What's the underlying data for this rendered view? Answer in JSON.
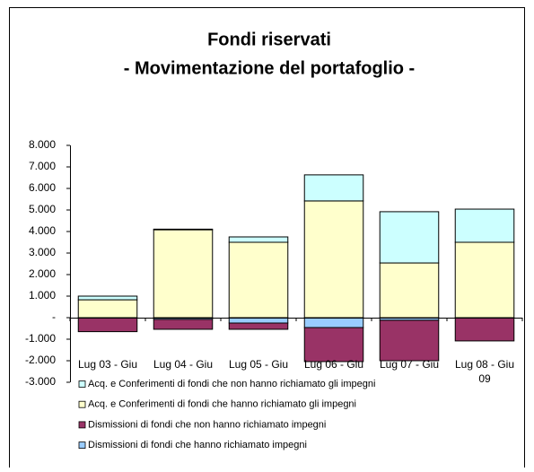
{
  "chart_data": {
    "type": "stacked_bar",
    "title": "Fondi riservati",
    "subtitle": "- Movimentazione del portafoglio -",
    "categories": [
      "Lug 03 - Giu",
      "Lug 04 - Giu",
      "Lug 05 - Giu",
      "Lug 06 - Giu",
      "Lug 07 - Giu",
      "Lug 08 - Giu 09"
    ],
    "series": [
      {
        "name": "Acq. e Conferimenti di fondi che non hanno richiamato gli impegni",
        "color": "#ccffff",
        "values": [
          170,
          30,
          250,
          1210,
          2380,
          1540
        ]
      },
      {
        "name": "Acq. e Conferimenti di fondi che hanno richiamato gli impegni",
        "color": "#ffffcc",
        "values": [
          830,
          4080,
          3500,
          5420,
          2540,
          3500
        ]
      },
      {
        "name": "Dismissioni di fondi che non hanno richiamato impegni",
        "color": "#993366",
        "values": [
          -650,
          -460,
          -290,
          -1580,
          -1880,
          -1080
        ]
      },
      {
        "name": "Dismissioni di fondi che hanno richiamato impegni",
        "color": "#99ccff",
        "values": [
          0,
          -80,
          -250,
          -460,
          -120,
          0
        ]
      }
    ],
    "ylim": [
      -3000,
      8000
    ],
    "yticks": [
      {
        "value": 8000,
        "label": "8.000"
      },
      {
        "value": 7000,
        "label": "7.000"
      },
      {
        "value": 6000,
        "label": "6.000"
      },
      {
        "value": 5000,
        "label": "5.000"
      },
      {
        "value": 4000,
        "label": "4.000"
      },
      {
        "value": 3000,
        "label": "3.000"
      },
      {
        "value": 2000,
        "label": "2.000"
      },
      {
        "value": 1000,
        "label": "1.000"
      },
      {
        "value": 0,
        "label": "-"
      },
      {
        "value": -1000,
        "label": "-1.000"
      },
      {
        "value": -2000,
        "label": "-2.000"
      },
      {
        "value": -3000,
        "label": "-3.000"
      }
    ],
    "grid": false
  }
}
